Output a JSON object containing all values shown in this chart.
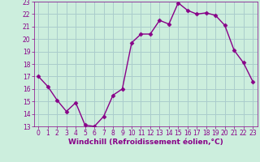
{
  "x": [
    0,
    1,
    2,
    3,
    4,
    5,
    6,
    7,
    8,
    9,
    10,
    11,
    12,
    13,
    14,
    15,
    16,
    17,
    18,
    19,
    20,
    21,
    22,
    23
  ],
  "y": [
    17.0,
    16.2,
    15.1,
    14.2,
    14.9,
    13.1,
    13.0,
    13.8,
    15.5,
    16.0,
    19.7,
    20.4,
    20.4,
    21.5,
    21.2,
    22.9,
    22.3,
    22.0,
    22.1,
    21.9,
    21.1,
    19.1,
    18.1,
    16.6
  ],
  "line_color": "#880088",
  "marker": "D",
  "marker_size": 2.5,
  "bg_color": "#cceedd",
  "grid_color": "#aacccc",
  "xlabel": "Windchill (Refroidissement éolien,°C)",
  "xlabel_color": "#880088",
  "xlim": [
    -0.5,
    23.5
  ],
  "ylim": [
    13,
    23
  ],
  "yticks": [
    13,
    14,
    15,
    16,
    17,
    18,
    19,
    20,
    21,
    22,
    23
  ],
  "xticks": [
    0,
    1,
    2,
    3,
    4,
    5,
    6,
    7,
    8,
    9,
    10,
    11,
    12,
    13,
    14,
    15,
    16,
    17,
    18,
    19,
    20,
    21,
    22,
    23
  ],
  "tick_color": "#880088",
  "tick_label_size": 5.5,
  "xlabel_size": 6.5,
  "linewidth": 1.0
}
